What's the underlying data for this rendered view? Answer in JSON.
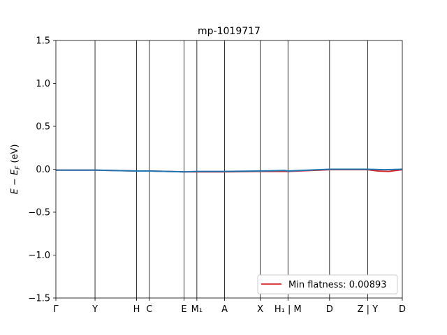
{
  "chart_data": {
    "type": "line",
    "title": "mp-1019717",
    "xlabel": "",
    "ylabel": "E − E",
    "ylabel_sub": "F",
    "ylabel_unit": "(eV)",
    "ylim": [
      -1.5,
      1.5
    ],
    "yticks": [
      -1.5,
      -1.0,
      -0.5,
      0.0,
      0.5,
      1.0,
      1.5
    ],
    "ytick_labels": [
      "−1.5",
      "−1.0",
      "−0.5",
      "0.0",
      "0.5",
      "1.0",
      "1.5"
    ],
    "xlim": [
      0,
      1
    ],
    "kpoints": [
      {
        "label": "Γ",
        "x": 0.0
      },
      {
        "label": "Y",
        "x": 0.113
      },
      {
        "label": "H",
        "x": 0.233
      },
      {
        "label": "C",
        "x": 0.27
      },
      {
        "label": "E",
        "x": 0.37
      },
      {
        "label": "M₁",
        "x": 0.407
      },
      {
        "label": "A",
        "x": 0.487
      },
      {
        "label": "X",
        "x": 0.59
      },
      {
        "label": "H₁ | M",
        "x": 0.67
      },
      {
        "label": "D",
        "x": 0.79
      },
      {
        "label": "Z | Y",
        "x": 0.9
      },
      {
        "label": "D",
        "x": 1.0
      }
    ],
    "grid": false,
    "legend_position": "lower-right",
    "series": [
      {
        "name": "Min flatness: 0.00893",
        "color": "#d62728",
        "x": [
          0.0,
          0.113,
          0.233,
          0.27,
          0.37,
          0.407,
          0.487,
          0.59,
          0.67,
          0.79,
          0.9,
          0.93,
          0.96,
          1.0
        ],
        "y": [
          -0.01,
          -0.01,
          -0.02,
          -0.02,
          -0.03,
          -0.03,
          -0.03,
          -0.025,
          -0.025,
          -0.005,
          -0.005,
          -0.02,
          -0.025,
          -0.005
        ]
      },
      {
        "color": "#1f77b4",
        "x": [
          0.0,
          0.113,
          0.233,
          0.27,
          0.37,
          0.407,
          0.487,
          0.59,
          0.66,
          0.67,
          0.79,
          0.9,
          0.95,
          1.0
        ],
        "y": [
          -0.01,
          -0.01,
          -0.02,
          -0.02,
          -0.03,
          -0.025,
          -0.025,
          -0.02,
          -0.015,
          -0.02,
          0.0,
          0.0,
          -0.005,
          0.0
        ]
      }
    ]
  }
}
